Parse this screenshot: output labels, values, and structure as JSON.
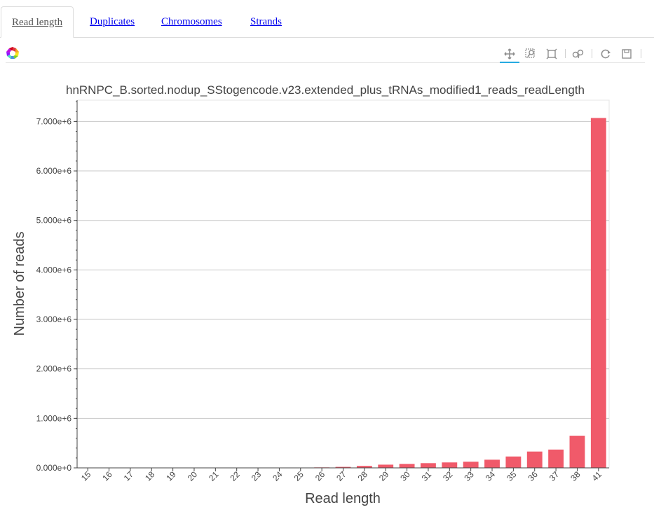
{
  "tabs": [
    {
      "label": "Read length",
      "active": true
    },
    {
      "label": "Duplicates",
      "active": false
    },
    {
      "label": "Chromosomes",
      "active": false
    },
    {
      "label": "Strands",
      "active": false
    }
  ],
  "toolbar": {
    "logo": "bokeh-logo-icon",
    "tools": [
      "pan-icon",
      "box-zoom-icon",
      "wheel-zoom-icon",
      "hover-icon",
      "reset-icon",
      "save-icon"
    ],
    "active_tool": "pan-icon"
  },
  "colors": {
    "bar": "#f05a6a",
    "grid": "#c8c8c8",
    "text": "#444444",
    "accent": "#26aae1"
  },
  "chart_data": {
    "type": "bar",
    "title": "hnRNPC_B.sorted.nodup_SStogencode.v23.extended_plus_tRNAs_modified1_reads_readLength",
    "xlabel": "Read length",
    "ylabel": "Number of reads",
    "categories": [
      "15",
      "16",
      "17",
      "18",
      "19",
      "20",
      "21",
      "22",
      "23",
      "24",
      "25",
      "26",
      "27",
      "28",
      "29",
      "30",
      "31",
      "32",
      "33",
      "34",
      "35",
      "36",
      "37",
      "38",
      "41"
    ],
    "values": [
      0,
      0,
      0,
      0,
      0,
      0,
      0,
      0,
      0,
      0,
      0,
      10000,
      20000,
      40000,
      65000,
      80000,
      95000,
      110000,
      125000,
      165000,
      230000,
      330000,
      370000,
      650000,
      7070000
    ],
    "yticks": [
      0,
      1000000,
      2000000,
      3000000,
      4000000,
      5000000,
      6000000,
      7000000
    ],
    "ytick_labels": [
      "0.000e+0",
      "1.000e+6",
      "2.000e+6",
      "3.000e+6",
      "4.000e+6",
      "5.000e+6",
      "6.000e+6",
      "7.000e+6"
    ],
    "ylim": [
      0,
      7430000
    ],
    "grid": true
  }
}
